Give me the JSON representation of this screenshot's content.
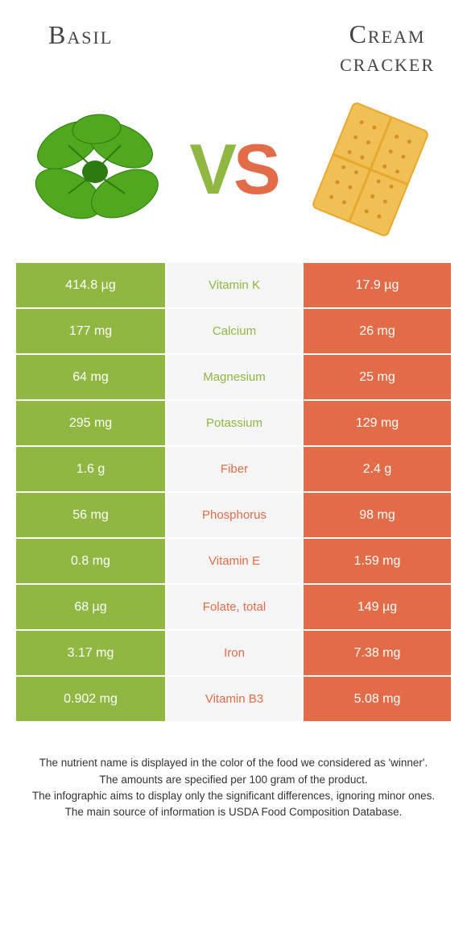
{
  "header": {
    "left_title": "Basil",
    "right_title_line1": "Cream",
    "right_title_line2": "cracker"
  },
  "vs": {
    "v": "V",
    "s": "S"
  },
  "colors": {
    "basil": "#8fb741",
    "cracker": "#e26c48",
    "mid_bg": "#f5f5f5",
    "text_white": "#ffffff"
  },
  "rows": [
    {
      "left": "414.8 µg",
      "name": "Vitamin K",
      "right": "17.9 µg",
      "winner": "basil"
    },
    {
      "left": "177 mg",
      "name": "Calcium",
      "right": "26 mg",
      "winner": "basil"
    },
    {
      "left": "64 mg",
      "name": "Magnesium",
      "right": "25 mg",
      "winner": "basil"
    },
    {
      "left": "295 mg",
      "name": "Potassium",
      "right": "129 mg",
      "winner": "basil"
    },
    {
      "left": "1.6 g",
      "name": "Fiber",
      "right": "2.4 g",
      "winner": "cracker"
    },
    {
      "left": "56 mg",
      "name": "Phosphorus",
      "right": "98 mg",
      "winner": "cracker"
    },
    {
      "left": "0.8 mg",
      "name": "Vitamin E",
      "right": "1.59 mg",
      "winner": "cracker"
    },
    {
      "left": "68 µg",
      "name": "Folate, total",
      "right": "149 µg",
      "winner": "cracker"
    },
    {
      "left": "3.17 mg",
      "name": "Iron",
      "right": "7.38 mg",
      "winner": "cracker"
    },
    {
      "left": "0.902 mg",
      "name": "Vitamin B3",
      "right": "5.08 mg",
      "winner": "cracker"
    }
  ],
  "footer": {
    "l1": "The nutrient name is displayed in the color of the food we considered as 'winner'.",
    "l2": "The amounts are specified per 100 gram of the product.",
    "l3": "The infographic aims to display only the significant differences, ignoring minor ones.",
    "l4": "The main source of information is USDA Food Composition Database."
  }
}
